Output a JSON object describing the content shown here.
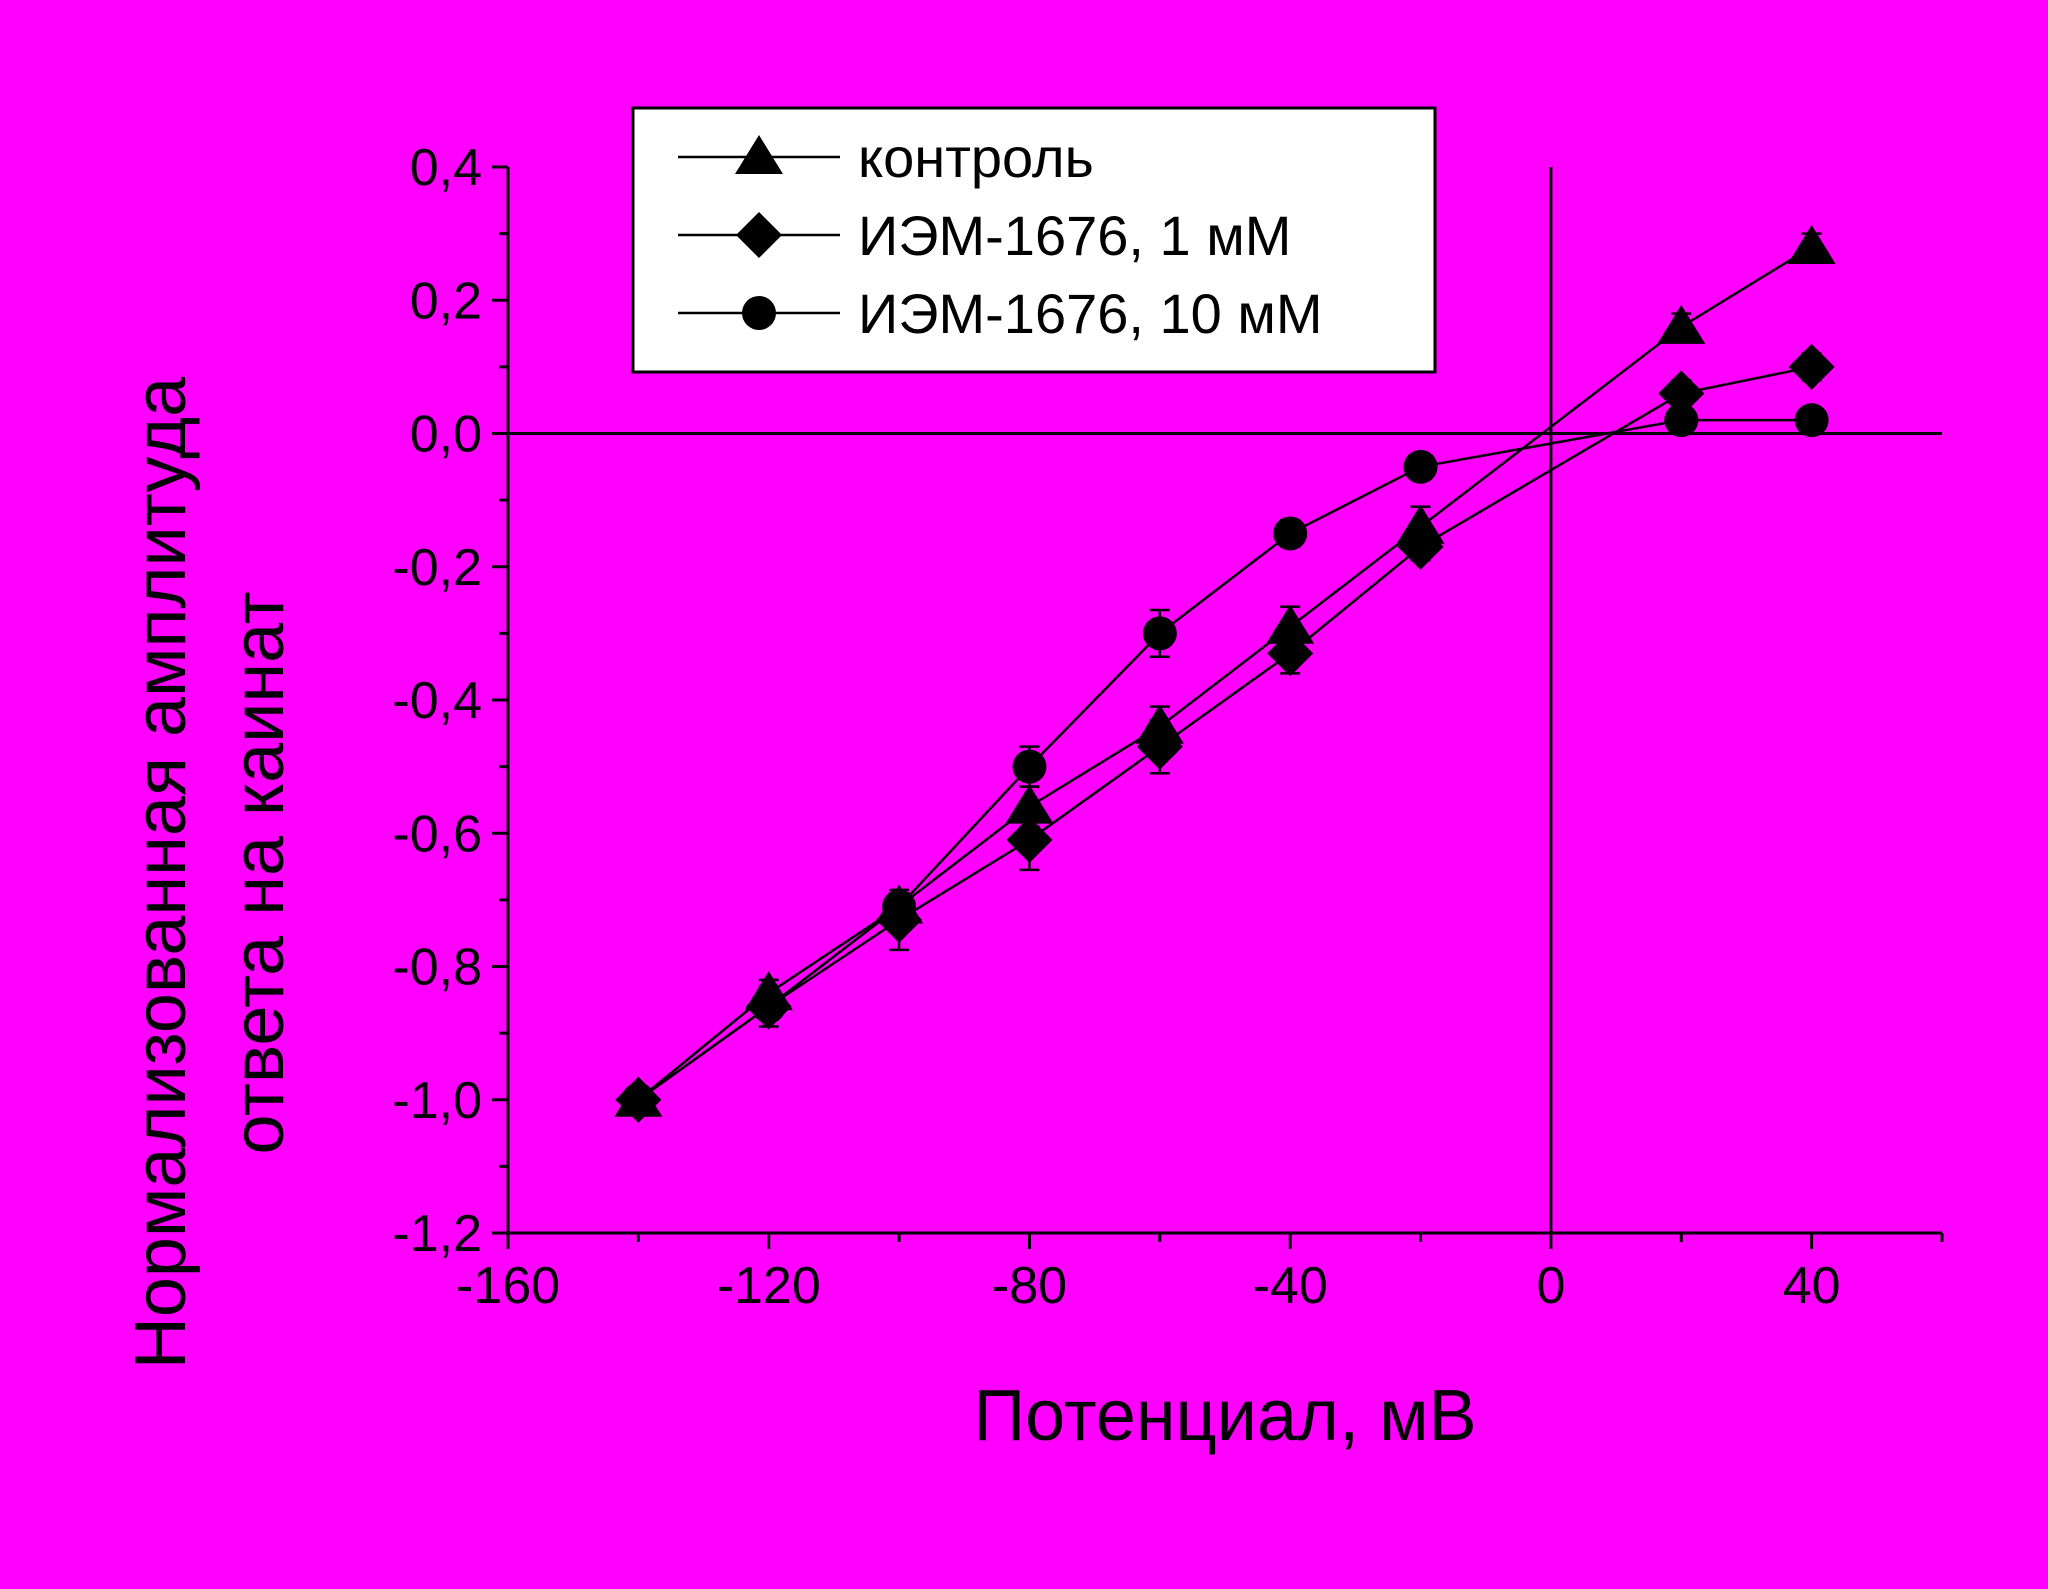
{
  "colors": {
    "background": "#ff00ff",
    "ink": "#000000",
    "legend_bg": "#ffffff"
  },
  "chart_data": {
    "type": "line",
    "title": "",
    "xlabel": "Потенциал, мВ",
    "ylabel_lines": [
      "Нормализованная амплитуда",
      "ответа на каинат"
    ],
    "xlim": [
      -160,
      60
    ],
    "ylim": [
      -1.2,
      0.4
    ],
    "x_ticks": [
      -160,
      -120,
      -80,
      -40,
      0,
      40
    ],
    "x_tick_labels": [
      "-160",
      "-120",
      "-80",
      "-40",
      "0",
      "40"
    ],
    "y_ticks": [
      -1.2,
      -1.0,
      -0.8,
      -0.6,
      -0.4,
      -0.2,
      0.0,
      0.2,
      0.4
    ],
    "y_tick_labels": [
      "-1,2",
      "-1,0",
      "-0,8",
      "-0,6",
      "-0,4",
      "-0,2",
      "0,0",
      "0,2",
      "0,4"
    ],
    "reference_lines": {
      "x": 0,
      "y": 0
    },
    "grid": false,
    "legend_position": "top-center",
    "x": [
      -140,
      -120,
      -100,
      -80,
      -60,
      -40,
      -20,
      20,
      40
    ],
    "series": [
      {
        "name": "контроль",
        "marker": "triangle",
        "values": [
          -1.0,
          -0.84,
          -0.71,
          -0.56,
          -0.44,
          -0.29,
          -0.14,
          0.16,
          0.28
        ],
        "errors": [
          0.01,
          0.02,
          0.02,
          0.03,
          0.03,
          0.03,
          0.03,
          0.02,
          0.02
        ]
      },
      {
        "name": "ИЭМ-1676, 1 мМ",
        "marker": "diamond",
        "values": [
          -1.0,
          -0.86,
          -0.73,
          -0.61,
          -0.47,
          -0.33,
          -0.17,
          0.06,
          0.1
        ],
        "errors": [
          0.01,
          0.03,
          0.045,
          0.045,
          0.04,
          0.03,
          0.02,
          0.02,
          0.02
        ]
      },
      {
        "name": "ИЭМ-1676, 10 мМ",
        "marker": "circle",
        "values": [
          -1.0,
          -0.86,
          -0.71,
          -0.5,
          -0.3,
          -0.15,
          -0.05,
          0.02,
          0.02
        ],
        "errors": [
          0.01,
          0.02,
          0.02,
          0.03,
          0.035,
          0.02,
          0.01,
          0.01,
          0.01
        ]
      }
    ]
  }
}
